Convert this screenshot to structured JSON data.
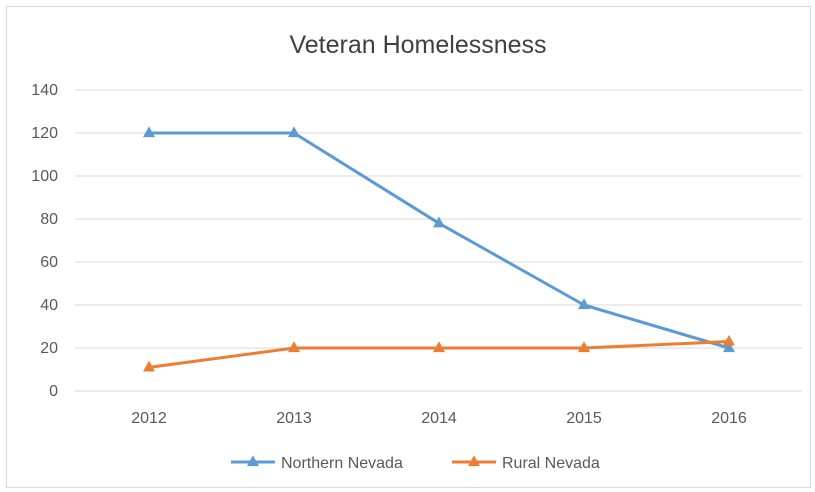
{
  "chart_data": {
    "type": "line",
    "title": "Veteran Homelessness",
    "xlabel": "",
    "ylabel": "",
    "categories": [
      "2012",
      "2013",
      "2014",
      "2015",
      "2016"
    ],
    "ylim": [
      0,
      140
    ],
    "yticks": [
      0,
      20,
      40,
      60,
      80,
      100,
      120,
      140
    ],
    "grid": true,
    "legend_position": "bottom",
    "marker": "triangle",
    "series": [
      {
        "name": "Northern Nevada",
        "color": "#5b9bd5",
        "values": [
          120,
          120,
          78,
          40,
          20
        ]
      },
      {
        "name": "Rural Nevada",
        "color": "#ed7d31",
        "values": [
          11,
          20,
          20,
          20,
          23
        ]
      }
    ]
  }
}
